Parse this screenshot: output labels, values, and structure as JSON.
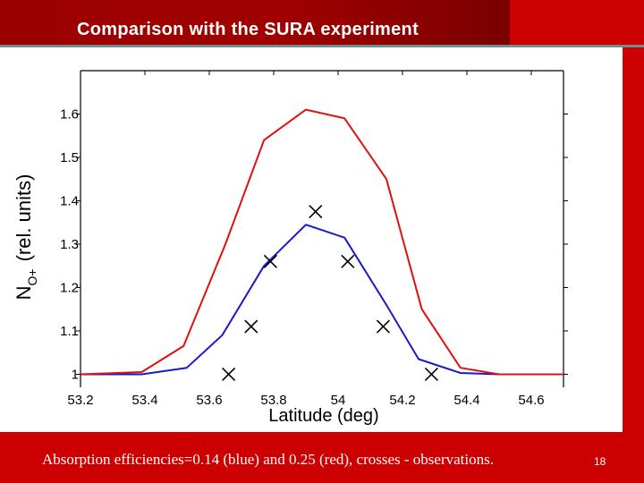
{
  "slide": {
    "title": "Comparison with the SURA experiment",
    "caption": "Absorption efficiencies=0.14 (blue) and 0.25 (red), crosses - observations.",
    "page_number": "18",
    "colors": {
      "header": "#cc0000",
      "header_dark": "#9a0000",
      "blue_series": "#1a1acc",
      "red_series": "#e01010",
      "markers": "#000000"
    }
  },
  "chart_data": {
    "type": "line",
    "xlabel": "Latitude (deg)",
    "ylabel": "N",
    "ylabel_sub": "O+",
    "ylabel_suffix": "(rel. units)",
    "xlim": [
      53.2,
      54.7
    ],
    "ylim": [
      0.97,
      1.7
    ],
    "x_ticks": [
      53.2,
      53.4,
      53.6,
      53.8,
      54,
      54.2,
      54.4,
      54.6
    ],
    "x_tick_labels": [
      "53.2",
      "53.4",
      "53.6",
      "53.8",
      "54",
      "54.2",
      "54.4",
      "54.6"
    ],
    "y_ticks": [
      1.0,
      1.1,
      1.2,
      1.3,
      1.4,
      1.5,
      1.6
    ],
    "y_tick_labels": [
      "1",
      "1.1",
      "1.2",
      "1.3",
      "1.4",
      "1.5",
      "1.6"
    ],
    "grid": false,
    "series": [
      {
        "type": "line",
        "color": "#1a1acc",
        "x": [
          53.2,
          53.39,
          53.53,
          53.64,
          53.77,
          53.9,
          54.02,
          54.15,
          54.25,
          54.38,
          54.5,
          54.7
        ],
        "y": [
          1.0,
          1.0,
          1.015,
          1.09,
          1.25,
          1.345,
          1.315,
          1.16,
          1.035,
          1.003,
          1.0,
          1.0
        ]
      },
      {
        "type": "line",
        "color": "#e01010",
        "x": [
          53.2,
          53.39,
          53.52,
          53.65,
          53.77,
          53.9,
          54.02,
          54.15,
          54.26,
          54.38,
          54.5,
          54.7
        ],
        "y": [
          1.0,
          1.005,
          1.065,
          1.3,
          1.54,
          1.61,
          1.59,
          1.45,
          1.15,
          1.015,
          1.0,
          1.0
        ]
      },
      {
        "type": "scatter",
        "marker": "x",
        "color": "#000000",
        "x": [
          53.66,
          53.73,
          53.79,
          53.93,
          54.03,
          54.14,
          54.29
        ],
        "y": [
          1.0,
          1.11,
          1.26,
          1.375,
          1.26,
          1.11,
          1.0
        ]
      }
    ]
  }
}
